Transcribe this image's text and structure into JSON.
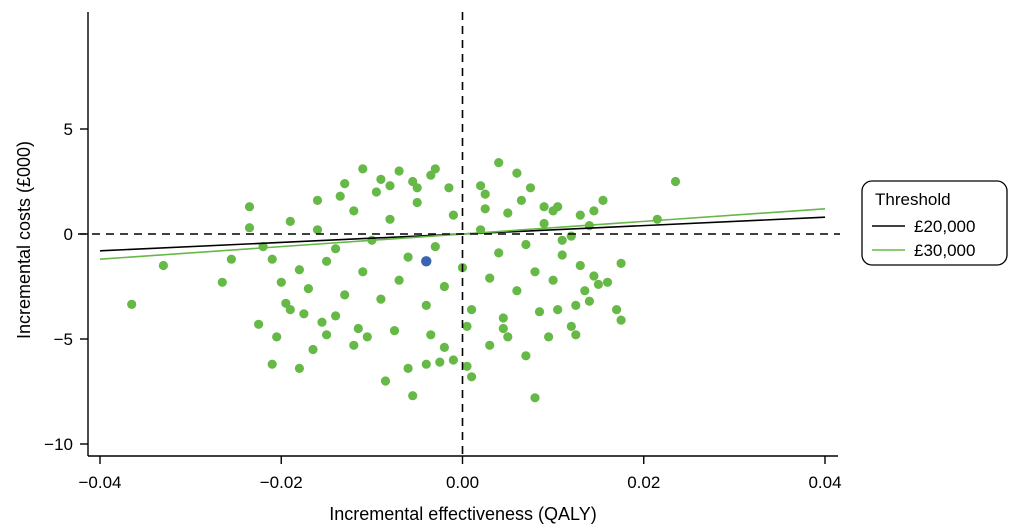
{
  "chart_data": {
    "type": "scatter",
    "xlabel": "Incremental effectiveness (QALY)",
    "ylabel": "Incremental costs (£000)",
    "xlim": [
      -0.042,
      0.041
    ],
    "ylim": [
      -10.5,
      10.5
    ],
    "x_ticks": [
      -0.04,
      -0.02,
      0.0,
      0.02,
      0.04
    ],
    "x_tick_labels": [
      "−0.04",
      "−0.02",
      "0.00",
      "0.02",
      "0.04"
    ],
    "y_ticks": [
      -10,
      -5,
      0,
      5
    ],
    "y_tick_labels": [
      "−10",
      "−5",
      "0",
      "5"
    ],
    "reference_lines": {
      "x": 0,
      "y": 0,
      "style": "dashed",
      "color": "#000000"
    },
    "point_color": "#66b847",
    "mean_point": {
      "x": -0.004,
      "y": -1.3,
      "color": "#3a64b0"
    },
    "threshold_lines": [
      {
        "name": "£20,000",
        "wtp_per_qaly": 20000,
        "color": "#000000",
        "x_range": [
          -0.04,
          0.04
        ]
      },
      {
        "name": "£30,000",
        "wtp_per_qaly": 30000,
        "color": "#66b847",
        "x_range": [
          -0.04,
          0.04
        ]
      }
    ],
    "legend": {
      "title": "Threshold",
      "position": "right",
      "entries": [
        "£20,000",
        "£30,000"
      ]
    },
    "grid": false,
    "points": [
      [
        -0.0365,
        -3.35
      ],
      [
        -0.033,
        -1.5
      ],
      [
        -0.0265,
        -2.3
      ],
      [
        -0.0255,
        -1.2
      ],
      [
        -0.0235,
        0.3
      ],
      [
        -0.0235,
        1.3
      ],
      [
        -0.0225,
        -4.3
      ],
      [
        -0.022,
        -0.6
      ],
      [
        -0.021,
        -6.2
      ],
      [
        -0.0205,
        -4.9
      ],
      [
        -0.019,
        -3.6
      ],
      [
        -0.018,
        -6.4
      ],
      [
        -0.0165,
        -5.5
      ],
      [
        -0.016,
        1.6
      ],
      [
        -0.015,
        -4.8
      ],
      [
        -0.014,
        -3.9
      ],
      [
        -0.013,
        2.4
      ],
      [
        -0.012,
        -5.3
      ],
      [
        -0.011,
        3.1
      ],
      [
        -0.0105,
        -4.9
      ],
      [
        -0.009,
        2.6
      ],
      [
        -0.0085,
        -7.0
      ],
      [
        -0.008,
        2.3
      ],
      [
        -0.007,
        3.0
      ],
      [
        -0.006,
        -6.4
      ],
      [
        -0.0055,
        -7.7
      ],
      [
        -0.005,
        2.2
      ],
      [
        -0.004,
        -6.2
      ],
      [
        -0.0035,
        2.8
      ],
      [
        -0.003,
        3.1
      ],
      [
        -0.0025,
        -6.1
      ],
      [
        -0.002,
        -5.4
      ],
      [
        -0.001,
        -6.0
      ],
      [
        0.0005,
        -6.3
      ],
      [
        0.001,
        -6.8
      ],
      [
        0.002,
        2.3
      ],
      [
        0.0025,
        1.2
      ],
      [
        0.003,
        -5.3
      ],
      [
        0.004,
        3.4
      ],
      [
        0.0045,
        -4.5
      ],
      [
        0.005,
        -4.9
      ],
      [
        0.006,
        2.9
      ],
      [
        0.007,
        -5.8
      ],
      [
        0.0075,
        2.2
      ],
      [
        0.008,
        -7.8
      ],
      [
        0.009,
        1.3
      ],
      [
        0.0095,
        -4.9
      ],
      [
        0.01,
        1.1
      ],
      [
        0.0105,
        -3.6
      ],
      [
        0.011,
        -0.3
      ],
      [
        0.012,
        -4.4
      ],
      [
        0.0125,
        -4.8
      ],
      [
        0.013,
        0.9
      ],
      [
        0.0135,
        -2.7
      ],
      [
        0.014,
        -3.2
      ],
      [
        0.0145,
        1.1
      ],
      [
        0.015,
        -2.4
      ],
      [
        0.0155,
        1.6
      ],
      [
        0.016,
        -2.3
      ],
      [
        0.017,
        -3.6
      ],
      [
        0.0175,
        -4.1
      ],
      [
        0.0175,
        -1.4
      ],
      [
        0.0215,
        0.7
      ],
      [
        0.0235,
        2.5
      ],
      [
        -0.021,
        -1.2
      ],
      [
        -0.02,
        -2.3
      ],
      [
        -0.019,
        0.6
      ],
      [
        -0.018,
        -1.7
      ],
      [
        -0.017,
        -2.6
      ],
      [
        -0.016,
        0.2
      ],
      [
        -0.015,
        -1.3
      ],
      [
        -0.014,
        -0.7
      ],
      [
        -0.013,
        -2.9
      ],
      [
        -0.012,
        1.1
      ],
      [
        -0.011,
        -1.8
      ],
      [
        -0.01,
        -0.3
      ],
      [
        -0.009,
        -3.1
      ],
      [
        -0.008,
        0.7
      ],
      [
        -0.007,
        -2.2
      ],
      [
        -0.006,
        -1.1
      ],
      [
        -0.005,
        1.5
      ],
      [
        -0.004,
        -3.4
      ],
      [
        -0.003,
        -0.6
      ],
      [
        -0.002,
        -2.5
      ],
      [
        -0.001,
        0.9
      ],
      [
        0.0,
        -1.6
      ],
      [
        0.001,
        -3.6
      ],
      [
        0.002,
        0.2
      ],
      [
        0.003,
        -2.1
      ],
      [
        0.004,
        -0.9
      ],
      [
        0.005,
        1.0
      ],
      [
        0.006,
        -2.7
      ],
      [
        0.007,
        -0.5
      ],
      [
        0.008,
        -1.8
      ],
      [
        0.009,
        0.5
      ],
      [
        0.01,
        -2.2
      ],
      [
        0.011,
        -1.0
      ],
      [
        0.012,
        -0.1
      ],
      [
        0.013,
        -1.5
      ],
      [
        0.014,
        0.4
      ],
      [
        -0.0195,
        -3.3
      ],
      [
        -0.0175,
        -3.8
      ],
      [
        -0.0155,
        -4.2
      ],
      [
        -0.0135,
        1.8
      ],
      [
        -0.0115,
        -4.5
      ],
      [
        -0.0095,
        2.0
      ],
      [
        -0.0075,
        -4.6
      ],
      [
        -0.0055,
        2.5
      ],
      [
        -0.0035,
        -4.8
      ],
      [
        -0.0015,
        2.2
      ],
      [
        0.0005,
        -4.4
      ],
      [
        0.0025,
        1.9
      ],
      [
        0.0045,
        -4.0
      ],
      [
        0.0065,
        1.6
      ],
      [
        0.0085,
        -3.7
      ],
      [
        0.0105,
        1.3
      ],
      [
        0.0125,
        -3.4
      ],
      [
        0.0145,
        -2.0
      ]
    ]
  }
}
